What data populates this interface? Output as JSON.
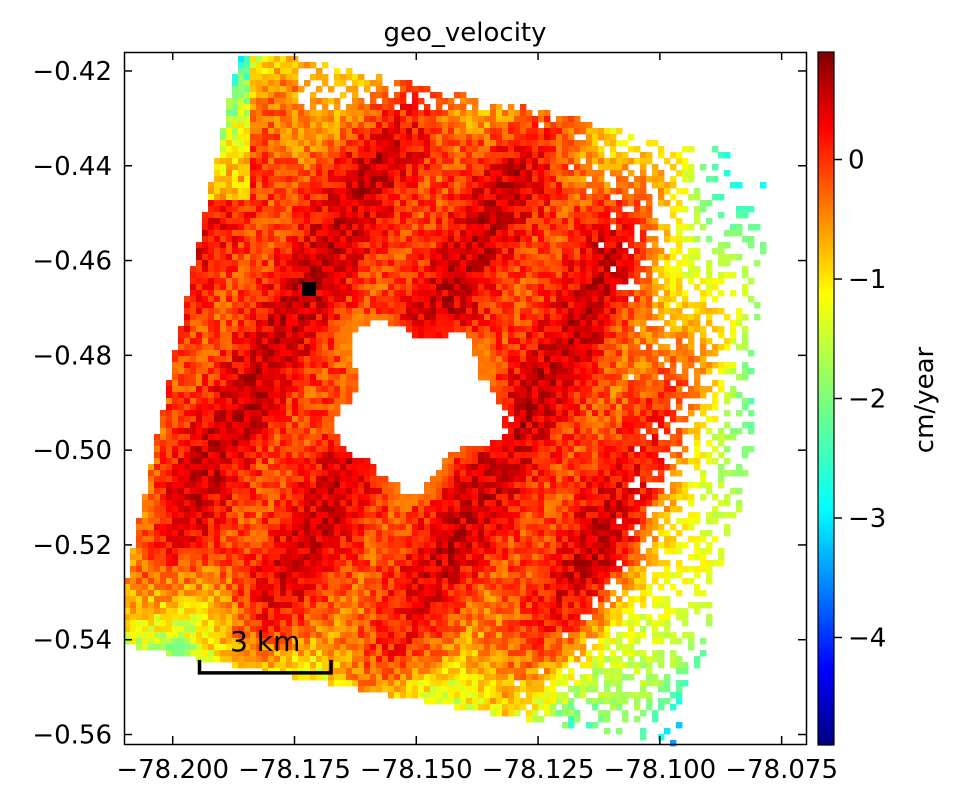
{
  "chart_data": {
    "type": "heatmap",
    "title": "geo_velocity",
    "xlabel": "",
    "ylabel": "",
    "xlim": [
      -78.21,
      -78.07
    ],
    "ylim": [
      -0.562,
      -0.416
    ],
    "x_ticks": [
      -78.2,
      -78.175,
      -78.15,
      -78.125,
      -78.1,
      -78.075
    ],
    "x_tick_labels": [
      "−78.200",
      "−78.175",
      "−78.150",
      "−78.125",
      "−78.100",
      "−78.075"
    ],
    "y_ticks": [
      -0.42,
      -0.44,
      -0.46,
      -0.48,
      -0.5,
      -0.52,
      -0.54,
      -0.56
    ],
    "y_tick_labels": [
      "−0.42",
      "−0.44",
      "−0.46",
      "−0.48",
      "−0.50",
      "−0.52",
      "−0.54",
      "−0.56"
    ],
    "colormap": "jet",
    "colorbar": {
      "label": "cm/year",
      "range": [
        -4.9,
        0.9
      ],
      "ticks": [
        0,
        -1,
        -2,
        -3,
        -4
      ],
      "tick_labels": [
        "0",
        "−1",
        "−2",
        "−3",
        "−4"
      ]
    },
    "reference_point": {
      "lon": -78.172,
      "lat": -0.466,
      "color": "#000000"
    },
    "void_center": {
      "lon": -78.15,
      "lat": -0.49
    },
    "scale_bar": {
      "label": "3 km",
      "from_lon": -78.1945,
      "to_lon": -78.1675,
      "lat": -0.547
    },
    "grid": false
  }
}
